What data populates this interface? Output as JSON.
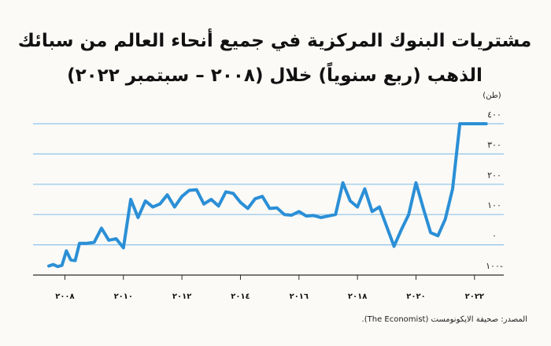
{
  "chart_data": {
    "type": "line",
    "title": "مشتريات البنوك المركزية في جميع أنحاء العالم من سبائك الذهب (ربع سنوياً) خلال (٢٠٠٨ – سبتمبر ٢٠٢٢)",
    "unit_label": "(طن)",
    "x_tick_labels": [
      "٢٠٠٨",
      "٢٠١٠",
      "٢٠١٢",
      "٢٠١٤",
      "٢٠١٦",
      "٢٠١٨",
      "٢٠٢٠",
      "٢٠٢٢"
    ],
    "x_tick_values": [
      2008,
      2010,
      2012,
      2014,
      2016,
      2018,
      2020,
      2022
    ],
    "y_tick_labels": [
      "١٠٠-",
      "٠",
      "١٠٠",
      "٢٠٠",
      "٣٠٠",
      "٤٠٠"
    ],
    "y_tick_values": [
      -100,
      0,
      100,
      200,
      300,
      400
    ],
    "ylim": [
      -100,
      400
    ],
    "xlim": [
      2007.45,
      2023.0
    ],
    "grid": true,
    "color": "#2b8fd6",
    "gridline_color": "#8cc3ea",
    "series": [
      {
        "x": [
          2007.45,
          2007.6,
          2007.75,
          2007.9,
          2008.05,
          2008.2,
          2008.35,
          2008.5,
          2008.75,
          2009.0,
          2009.25,
          2009.5,
          2009.75,
          2010.0,
          2010.25,
          2010.5,
          2010.75,
          2011.0,
          2011.25,
          2011.5,
          2011.75,
          2012.0,
          2012.25,
          2012.5,
          2012.75,
          2013.0,
          2013.25,
          2013.5,
          2013.75,
          2014.0,
          2014.25,
          2014.5,
          2014.75,
          2015.0,
          2015.25,
          2015.5,
          2015.75,
          2016.0,
          2016.25,
          2016.5,
          2016.75,
          2017.0,
          2017.25,
          2017.5,
          2017.75,
          2018.0,
          2018.25,
          2018.5,
          2018.75,
          2019.0,
          2019.25,
          2019.5,
          2019.75,
          2020.0,
          2020.25,
          2020.5,
          2020.75,
          2021.0,
          2021.25,
          2021.5,
          2021.75,
          2022.0,
          2022.25,
          2022.4
        ],
        "values": [
          -70,
          -65,
          -72,
          -68,
          -20,
          -50,
          -52,
          5,
          5,
          8,
          55,
          15,
          20,
          -10,
          150,
          90,
          145,
          125,
          135,
          165,
          125,
          160,
          180,
          182,
          135,
          150,
          128,
          175,
          170,
          140,
          120,
          152,
          160,
          120,
          122,
          100,
          98,
          110,
          95,
          97,
          90,
          95,
          100,
          205,
          145,
          125,
          185,
          110,
          125,
          60,
          -5,
          50,
          100,
          205,
          120,
          40,
          30,
          85,
          185,
          400,
          400,
          400,
          400,
          400
        ]
      }
    ]
  },
  "source": "المصدر: صحيفة الايكونومست (The Economist)."
}
